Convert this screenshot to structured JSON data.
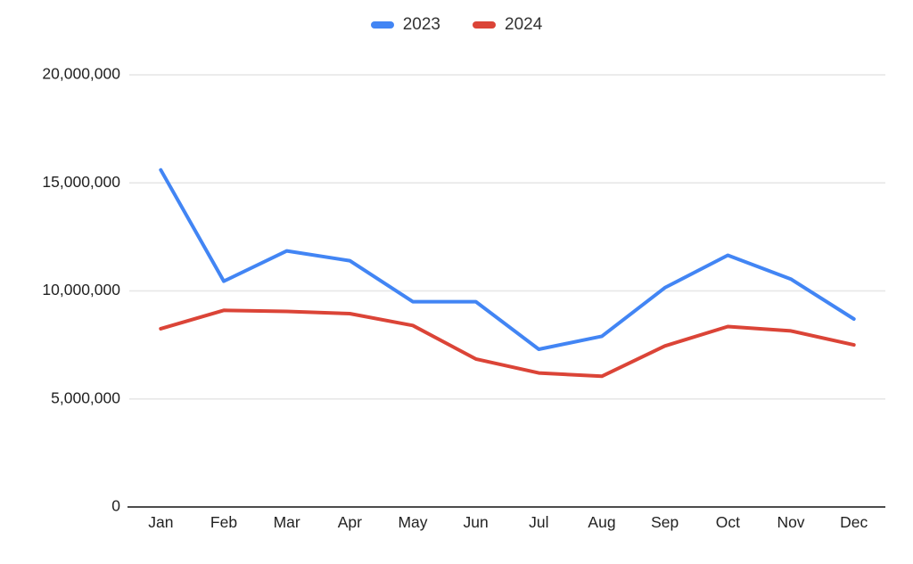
{
  "chart_data": {
    "type": "line",
    "categories": [
      "Jan",
      "Feb",
      "Mar",
      "Apr",
      "May",
      "Jun",
      "Jul",
      "Aug",
      "Sep",
      "Oct",
      "Nov",
      "Dec"
    ],
    "series": [
      {
        "name": "2023",
        "color": "#4285F4",
        "values": [
          15600000,
          10450000,
          11850000,
          11400000,
          9500000,
          9500000,
          7300000,
          7900000,
          10150000,
          11650000,
          10550000,
          8700000
        ]
      },
      {
        "name": "2024",
        "color": "#DB4437",
        "values": [
          8250000,
          9100000,
          9050000,
          8950000,
          8400000,
          6850000,
          6200000,
          6050000,
          7450000,
          8350000,
          8150000,
          7500000
        ]
      }
    ],
    "ylim": [
      0,
      20000000
    ],
    "yticks": [
      0,
      5000000,
      10000000,
      15000000,
      20000000
    ],
    "ytick_labels": [
      "0",
      "5,000,000",
      "10,000,000",
      "15,000,000",
      "20,000,000"
    ],
    "grid": true,
    "legend_position": "top"
  },
  "colors": {
    "background": "#ffffff",
    "gridline": "#e6e6e6",
    "axis_line": "#333333",
    "tick_text": "#222222"
  }
}
